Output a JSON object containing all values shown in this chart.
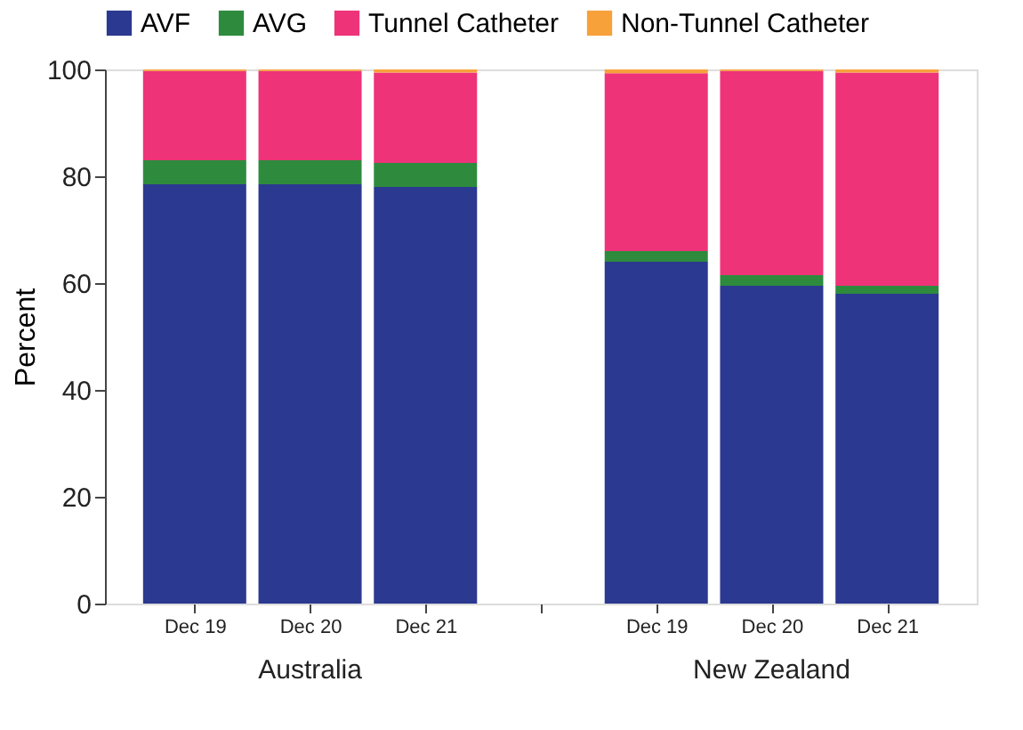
{
  "chart_data": {
    "type": "bar",
    "stacked": true,
    "ylabel": "Percent",
    "categories": [
      "Dec 19",
      "Dec 20",
      "Dec 21",
      null,
      "Dec 19",
      "Dec 20",
      "Dec 21"
    ],
    "series": [
      {
        "name": "AVF",
        "color": "#2b3990",
        "values": [
          78.5,
          78.5,
          78,
          null,
          64,
          59.5,
          58
        ]
      },
      {
        "name": "AVG",
        "color": "#2e8b3e",
        "values": [
          4.5,
          4.5,
          4.5,
          null,
          2,
          2,
          1.5
        ]
      },
      {
        "name": "Tunnel Catheter",
        "color": "#ee3379",
        "values": [
          16.7,
          16.7,
          16.9,
          null,
          33.3,
          38.2,
          39.9
        ]
      },
      {
        "name": "Non-Tunnel Catheter",
        "color": "#f7a13b",
        "values": [
          0.3,
          0.3,
          0.6,
          null,
          0.7,
          0.3,
          0.6
        ]
      }
    ],
    "ylim": [
      0,
      100
    ],
    "yticks": [
      0,
      20,
      40,
      60,
      80,
      100
    ],
    "grid": false,
    "legend": "top",
    "annotations": [
      "Australia",
      "New Zealand"
    ]
  }
}
